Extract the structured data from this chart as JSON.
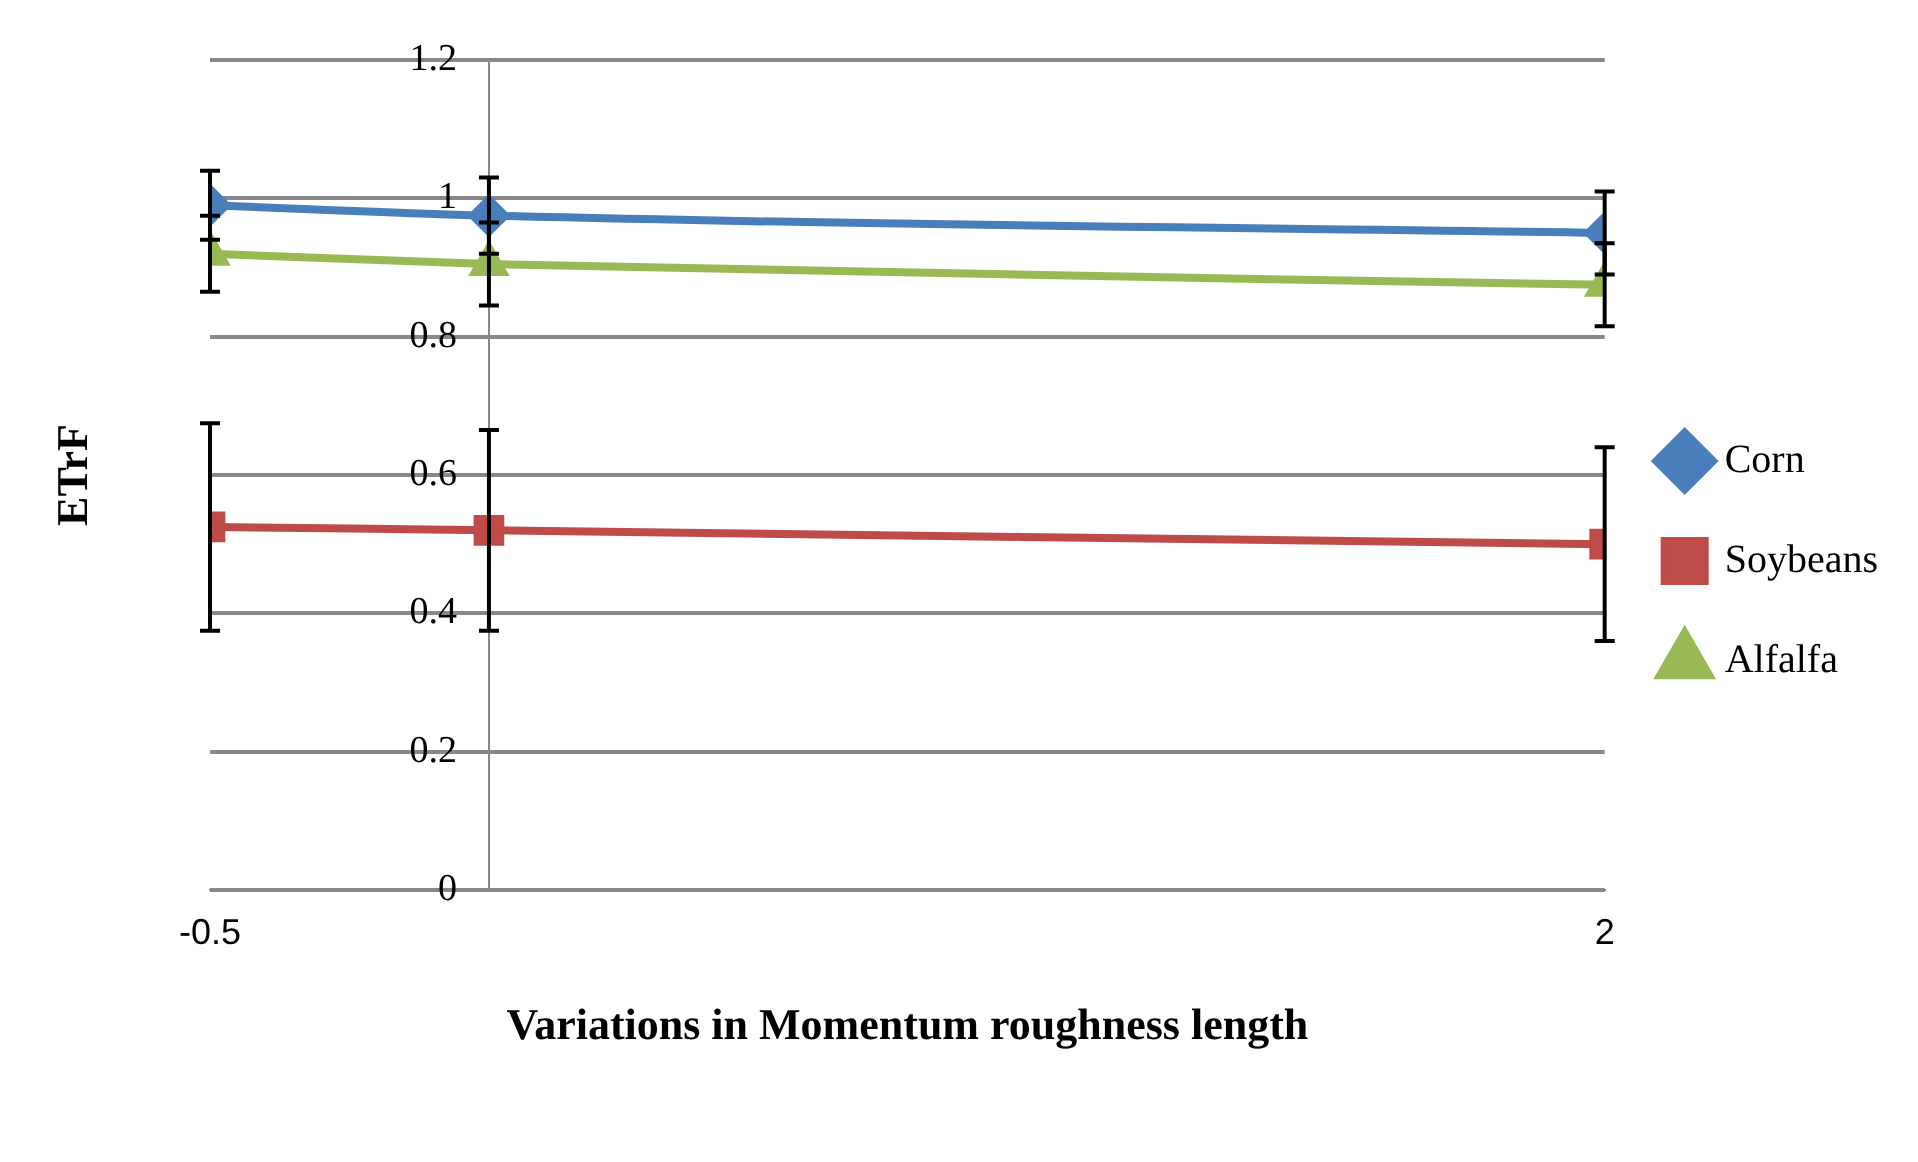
{
  "chart_data": {
    "type": "line",
    "xlabel": "Variations in Momentum roughness length",
    "ylabel": "ETrF",
    "x": [
      -0.5,
      0,
      2
    ],
    "xlim": [
      -0.5,
      2
    ],
    "xticks": [
      -0.5,
      2
    ],
    "ylim": [
      0,
      1.2
    ],
    "yticks": [
      0,
      0.2,
      0.4,
      0.6,
      0.8,
      1,
      1.2
    ],
    "grid": "y",
    "legend": "right",
    "series": [
      {
        "name": "Corn",
        "color": "#4a7ebb",
        "marker": "diamond",
        "values": [
          0.99,
          0.975,
          0.95
        ],
        "errors": [
          0.05,
          0.055,
          0.06
        ]
      },
      {
        "name": "Soybeans",
        "color": "#be4b48",
        "marker": "square",
        "values": [
          0.525,
          0.52,
          0.5
        ],
        "errors": [
          0.15,
          0.145,
          0.14
        ]
      },
      {
        "name": "Alfalfa",
        "color": "#98b954",
        "marker": "triangle",
        "values": [
          0.92,
          0.905,
          0.875
        ],
        "errors": [
          0.055,
          0.06,
          0.06
        ]
      }
    ]
  }
}
